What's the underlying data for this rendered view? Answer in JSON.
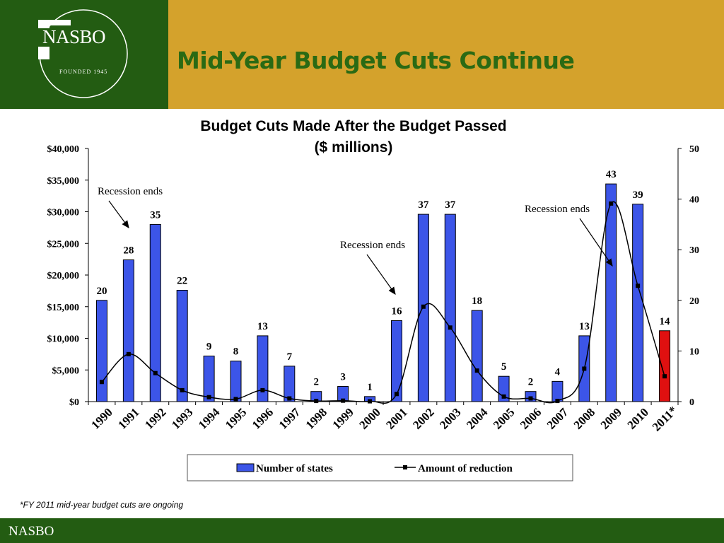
{
  "header": {
    "title": "Mid-Year Budget Cuts Continue",
    "logo": {
      "name": "NASBO",
      "tagline": "FOUNDED 1945"
    },
    "colors": {
      "logo_panel": "#235c12",
      "title_panel": "#d4a22c",
      "title_text": "#2a6a14"
    }
  },
  "chart_data": {
    "type": "bar",
    "title": "Budget Cuts Made After the Budget Passed",
    "subtitle": "($ millions)",
    "categories": [
      "1990",
      "1991",
      "1992",
      "1993",
      "1994",
      "1995",
      "1996",
      "1997",
      "1998",
      "1999",
      "2000",
      "2001",
      "2002",
      "2003",
      "2004",
      "2005",
      "2006",
      "2007",
      "2008",
      "2009",
      "2010",
      "2011*"
    ],
    "series": [
      {
        "name": "Number of states",
        "type": "bar",
        "axis": "right",
        "color": "#3c55e8",
        "highlight_color": "#e01010",
        "highlight_category": "2011*",
        "values": [
          20,
          28,
          35,
          22,
          9,
          8,
          13,
          7,
          2,
          3,
          1,
          16,
          37,
          37,
          18,
          5,
          2,
          4,
          13,
          43,
          39,
          14
        ]
      },
      {
        "name": "Amount of reduction",
        "type": "line",
        "axis": "left",
        "color": "#000000",
        "values": [
          3100,
          7500,
          4500,
          1800,
          700,
          400,
          1800,
          500,
          100,
          150,
          50,
          1200,
          15000,
          11700,
          4900,
          800,
          500,
          100,
          5200,
          31300,
          18300,
          4000
        ]
      }
    ],
    "y_left": {
      "ticks": [
        "$0",
        "$5,000",
        "$10,000",
        "$15,000",
        "$20,000",
        "$25,000",
        "$30,000",
        "$35,000",
        "$40,000"
      ],
      "ylim": [
        0,
        40000
      ]
    },
    "y_right": {
      "ticks": [
        "0",
        "10",
        "20",
        "30",
        "40",
        "50"
      ],
      "ylim": [
        0,
        50
      ]
    },
    "annotations": [
      {
        "text": "Recession ends",
        "category": "1991"
      },
      {
        "text": "Recession ends",
        "category": "2001"
      },
      {
        "text": "Recession ends",
        "category": "2009"
      }
    ],
    "legend": {
      "placement": "bottom",
      "entries": [
        "Number of states",
        "Amount of reduction"
      ]
    },
    "grid": false
  },
  "footnote": "*FY 2011 mid-year budget cuts are ongoing",
  "footer": {
    "label": "NASBO",
    "color": "#235c12"
  }
}
